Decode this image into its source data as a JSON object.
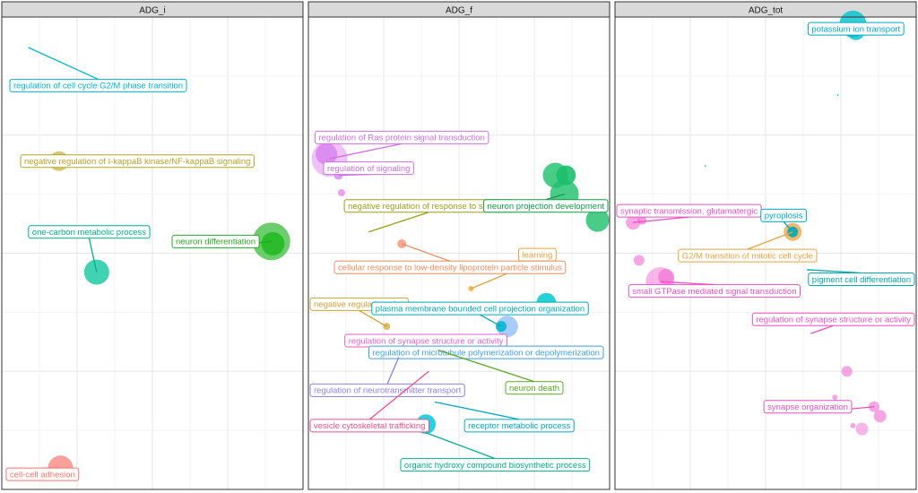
{
  "chart_data": {
    "type": "scatter",
    "legend": "none",
    "grid": true,
    "xlim": [
      0,
      1
    ],
    "ylim": [
      0,
      1
    ],
    "panels": [
      {
        "title": "ADG_i",
        "points": [
          {
            "x": 0.09,
            "y": 0.935,
            "size": 1,
            "color": "#00b5ce",
            "alpha": 0.7
          },
          {
            "x": 0.19,
            "y": 0.695,
            "size": 11,
            "color": "#c4b032",
            "alpha": 0.7
          },
          {
            "x": 0.895,
            "y": 0.525,
            "size": 21,
            "color": "#2eb82e",
            "alpha": 0.7
          },
          {
            "x": 0.9,
            "y": 0.52,
            "size": 13,
            "color": "#1fb81f",
            "alpha": 0.85
          },
          {
            "x": 0.315,
            "y": 0.46,
            "size": 14,
            "color": "#11c79f",
            "alpha": 0.8
          },
          {
            "x": 0.195,
            "y": 0.045,
            "size": 14,
            "color": "#f8766d",
            "alpha": 0.7
          }
        ],
        "labels": [
          {
            "text": "regulation of cell cycle G2/M phase transition",
            "x": 0.32,
            "y": 0.855,
            "color": "#00b5ce",
            "px": 0.09,
            "py": 0.935
          },
          {
            "text": "negative regulation of I-kappaB kinase/NF-kappaB signaling",
            "x": 0.45,
            "y": 0.695,
            "color": "#b3a22a",
            "px": 0.19,
            "py": 0.695
          },
          {
            "text": "neuron differentiation",
            "x": 0.71,
            "y": 0.525,
            "color": "#28a728",
            "px": 0.895,
            "py": 0.525
          },
          {
            "text": "one-carbon metabolic process",
            "x": 0.29,
            "y": 0.545,
            "color": "#00b08a",
            "px": 0.315,
            "py": 0.46
          },
          {
            "text": "cell-cell adhesion",
            "x": 0.135,
            "y": 0.032,
            "color": "#f8766d",
            "px": 0.195,
            "py": 0.045
          }
        ]
      },
      {
        "title": "ADG_f",
        "points": [
          {
            "x": 0.07,
            "y": 0.7,
            "size": 20,
            "color": "#d975f2",
            "alpha": 0.45
          },
          {
            "x": 0.06,
            "y": 0.71,
            "size": 12,
            "color": "#c95ae8",
            "alpha": 0.5
          },
          {
            "x": 0.1,
            "y": 0.665,
            "size": 5,
            "color": "#d975f2",
            "alpha": 0.7
          },
          {
            "x": 0.11,
            "y": 0.628,
            "size": 4,
            "color": "#e78af0",
            "alpha": 0.8
          },
          {
            "x": 0.17,
            "y": 0.59,
            "size": 2,
            "color": "#e7a1ec",
            "alpha": 0.8
          },
          {
            "x": 0.31,
            "y": 0.52,
            "size": 5,
            "color": "#f08b6f",
            "alpha": 0.75
          },
          {
            "x": 0.82,
            "y": 0.665,
            "size": 14,
            "color": "#1dbf6b",
            "alpha": 0.8
          },
          {
            "x": 0.85,
            "y": 0.625,
            "size": 16,
            "color": "#1dbf6b",
            "alpha": 0.8
          },
          {
            "x": 0.855,
            "y": 0.665,
            "size": 11,
            "color": "#1dbf6b",
            "alpha": 0.9
          },
          {
            "x": 0.96,
            "y": 0.57,
            "size": 13,
            "color": "#1dbf6b",
            "alpha": 0.8
          },
          {
            "x": 0.54,
            "y": 0.425,
            "size": 3,
            "color": "#e8ad3c",
            "alpha": 0.8
          },
          {
            "x": 0.79,
            "y": 0.395,
            "size": 11,
            "color": "#00c8cf",
            "alpha": 0.85
          },
          {
            "x": 0.66,
            "y": 0.345,
            "size": 12,
            "color": "#5ea3f2",
            "alpha": 0.55
          },
          {
            "x": 0.64,
            "y": 0.345,
            "size": 6,
            "color": "#00b5ce",
            "alpha": 0.85
          },
          {
            "x": 0.26,
            "y": 0.345,
            "size": 4,
            "color": "#d4a83a",
            "alpha": 0.75
          },
          {
            "x": 0.43,
            "y": 0.295,
            "size": 4,
            "color": "#7cc23a",
            "alpha": 0.75
          },
          {
            "x": 0.39,
            "y": 0.138,
            "size": 11,
            "color": "#00c8e0",
            "alpha": 0.85
          }
        ],
        "labels": [
          {
            "text": "regulation of Ras protein signal transduction",
            "x": 0.31,
            "y": 0.745,
            "color": "#cf6fe0",
            "px": 0.07,
            "py": 0.7
          },
          {
            "text": "regulation of signaling",
            "x": 0.2,
            "y": 0.68,
            "color": "#cf6fe0",
            "px": 0.1,
            "py": 0.665
          },
          {
            "text": "negative regulation of response to stimulus",
            "x": 0.4,
            "y": 0.6,
            "color": "#9c9c1a",
            "px": 0.2,
            "py": 0.545
          },
          {
            "text": "neuron projection development",
            "x": 0.82,
            "y": 0.6,
            "color": "#0f9c45",
            "px": 0.85,
            "py": 0.625
          },
          {
            "text": "learning",
            "x": 0.76,
            "y": 0.497,
            "color": "#e0a23c",
            "px": 0.54,
            "py": 0.425
          },
          {
            "text": "cellular response to low-density lipoprotein particle stimulus",
            "x": 0.47,
            "y": 0.47,
            "color": "#ef8c5c",
            "px": 0.31,
            "py": 0.52
          },
          {
            "text": "negative regulation of ...",
            "x": 0.12,
            "y": 0.392,
            "color": "#cfa035",
            "px": 0.26,
            "py": 0.345
          },
          {
            "text": "plasma membrane bounded cell projection organization",
            "x": 0.57,
            "y": 0.383,
            "color": "#00a8b8",
            "px": 0.64,
            "py": 0.345
          },
          {
            "text": "regulation of synapse structure or activity",
            "x": 0.39,
            "y": 0.315,
            "color": "#e75fc6",
            "px": 0.43,
            "py": 0.295
          },
          {
            "text": "regulation of microtubule polymerization or depolymerization",
            "x": 0.59,
            "y": 0.29,
            "color": "#3e9ee8",
            "px": 0.43,
            "py": 0.295
          },
          {
            "text": "neuron death",
            "x": 0.75,
            "y": 0.215,
            "color": "#5aa824",
            "px": 0.43,
            "py": 0.295
          },
          {
            "text": "regulation of neurotransmitter transport",
            "x": 0.23,
            "y": 0.21,
            "color": "#8f7ee8",
            "px": 0.3,
            "py": 0.28
          },
          {
            "text": "vesicle cytoskeletal trafficking",
            "x": 0.17,
            "y": 0.135,
            "color": "#ee4f8a",
            "px": 0.4,
            "py": 0.25
          },
          {
            "text": "receptor metabolic process",
            "x": 0.7,
            "y": 0.135,
            "color": "#00a8c6",
            "px": 0.42,
            "py": 0.185
          },
          {
            "text": "organic hydroxy compound biosynthetic process",
            "x": 0.62,
            "y": 0.052,
            "color": "#00b08a",
            "px": 0.39,
            "py": 0.12
          }
        ]
      },
      {
        "title": "ADG_tot",
        "points": [
          {
            "x": 0.79,
            "y": 0.985,
            "size": 15,
            "color": "#00c3cf",
            "alpha": 0.8
          },
          {
            "x": 0.8,
            "y": 0.97,
            "size": 10,
            "color": "#00c3cf",
            "alpha": 0.8
          },
          {
            "x": 0.74,
            "y": 0.835,
            "size": 1,
            "color": "#00c3cf",
            "alpha": 0.8
          },
          {
            "x": 0.3,
            "y": 0.685,
            "size": 1,
            "color": "#00c3cf",
            "alpha": 0.8
          },
          {
            "x": 0.06,
            "y": 0.565,
            "size": 8,
            "color": "#f06bd2",
            "alpha": 0.6
          },
          {
            "x": 0.09,
            "y": 0.57,
            "size": 5,
            "color": "#f06bd2",
            "alpha": 0.7
          },
          {
            "x": 0.59,
            "y": 0.545,
            "size": 10,
            "color": "#e8a33e",
            "alpha": 0.75
          },
          {
            "x": 0.59,
            "y": 0.545,
            "size": 6,
            "color": "#00aab5",
            "alpha": 0.9
          },
          {
            "x": 0.64,
            "y": 0.465,
            "size": 1,
            "color": "#00aab5",
            "alpha": 0.8
          },
          {
            "x": 0.08,
            "y": 0.485,
            "size": 6,
            "color": "#f06bd2",
            "alpha": 0.6
          },
          {
            "x": 0.15,
            "y": 0.44,
            "size": 16,
            "color": "#f06bd2",
            "alpha": 0.5
          },
          {
            "x": 0.17,
            "y": 0.45,
            "size": 9,
            "color": "#f06bd2",
            "alpha": 0.6
          },
          {
            "x": 0.77,
            "y": 0.25,
            "size": 6,
            "color": "#f06bd2",
            "alpha": 0.6
          },
          {
            "x": 0.73,
            "y": 0.195,
            "size": 3,
            "color": "#f06bd2",
            "alpha": 0.6
          },
          {
            "x": 0.86,
            "y": 0.175,
            "size": 6,
            "color": "#f06bd2",
            "alpha": 0.6
          },
          {
            "x": 0.88,
            "y": 0.155,
            "size": 7,
            "color": "#f06bd2",
            "alpha": 0.6
          },
          {
            "x": 0.82,
            "y": 0.128,
            "size": 7,
            "color": "#f06bd2",
            "alpha": 0.5
          },
          {
            "x": 0.79,
            "y": 0.135,
            "size": 3,
            "color": "#f06bd2",
            "alpha": 0.6
          }
        ],
        "labels": [
          {
            "text": "potassium ion transport",
            "x": 0.8,
            "y": 0.975,
            "color": "#00a8c6",
            "px": 0.8,
            "py": 0.975
          },
          {
            "text": "synaptic transmission, glutamatergic",
            "x": 0.24,
            "y": 0.59,
            "color": "#ee4fc2",
            "px": 0.06,
            "py": 0.565
          },
          {
            "text": "pyroplosis",
            "x": 0.56,
            "y": 0.58,
            "color": "#00a8c6",
            "px": 0.59,
            "py": 0.545
          },
          {
            "text": "G2/M transition of mitotic cell cycle",
            "x": 0.44,
            "y": 0.495,
            "color": "#e8a33e",
            "px": 0.59,
            "py": 0.545
          },
          {
            "text": "pigment cell differentiation",
            "x": 0.85,
            "y": 0.445,
            "color": "#00aab5",
            "px": 0.64,
            "py": 0.465
          },
          {
            "text": "small GTPase mediated signal transduction",
            "x": 0.33,
            "y": 0.42,
            "color": "#ee4fc2",
            "px": 0.15,
            "py": 0.44
          },
          {
            "text": "regulation of synapse structure or activity",
            "x": 0.8,
            "y": 0.36,
            "color": "#ee4fc2",
            "px": 0.65,
            "py": 0.33
          },
          {
            "text": "synapse organization",
            "x": 0.64,
            "y": 0.175,
            "color": "#ee4fc2",
            "px": 0.86,
            "py": 0.175
          }
        ]
      }
    ]
  }
}
